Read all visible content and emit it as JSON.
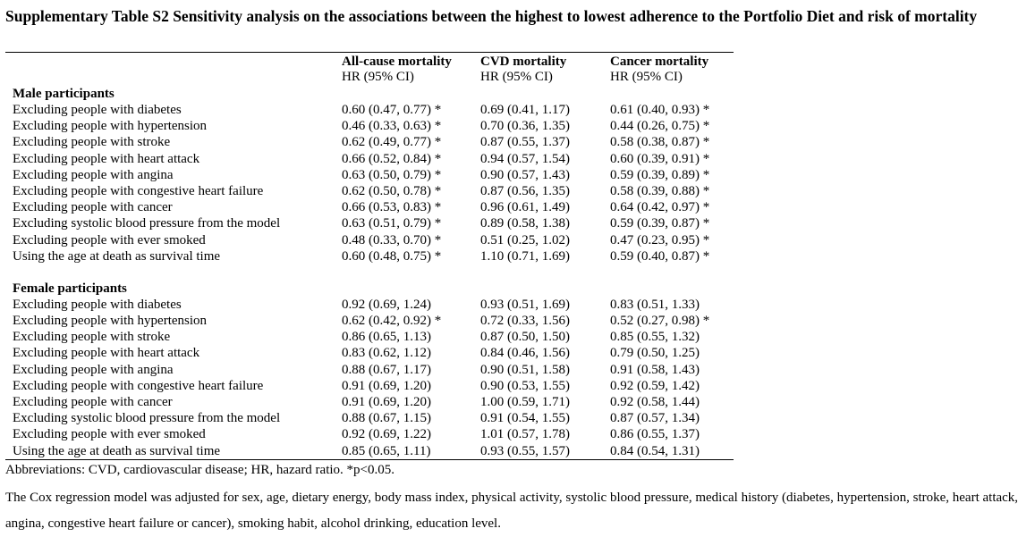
{
  "title": "Supplementary Table S2 Sensitivity analysis on the associations between the highest to lowest adherence to the Portfolio Diet and risk of mortality",
  "columns": [
    {
      "name": "All-cause mortality",
      "sub": "HR (95% CI)"
    },
    {
      "name": "CVD mortality",
      "sub": "HR (95% CI)"
    },
    {
      "name": "Cancer mortality",
      "sub": "HR (95% CI)"
    }
  ],
  "groups": [
    {
      "label": "Male participants",
      "rows": [
        {
          "label": "Excluding people with diabetes",
          "v1": "0.60 (0.47, 0.77) *",
          "v2": "0.69 (0.41, 1.17)",
          "v3": "0.61 (0.40, 0.93) *"
        },
        {
          "label": "Excluding people with hypertension",
          "v1": "0.46 (0.33, 0.63) *",
          "v2": "0.70 (0.36, 1.35)",
          "v3": "0.44 (0.26, 0.75) *"
        },
        {
          "label": "Excluding people with stroke",
          "v1": "0.62 (0.49, 0.77) *",
          "v2": "0.87 (0.55, 1.37)",
          "v3": "0.58 (0.38, 0.87) *"
        },
        {
          "label": "Excluding people with heart attack",
          "v1": "0.66 (0.52, 0.84) *",
          "v2": "0.94 (0.57, 1.54)",
          "v3": "0.60 (0.39, 0.91) *"
        },
        {
          "label": "Excluding people with angina",
          "v1": "0.63 (0.50, 0.79) *",
          "v2": "0.90 (0.57, 1.43)",
          "v3": "0.59 (0.39, 0.89) *"
        },
        {
          "label": "Excluding people with congestive heart failure",
          "v1": "0.62 (0.50, 0.78) *",
          "v2": "0.87 (0.56, 1.35)",
          "v3": "0.58 (0.39, 0.88) *"
        },
        {
          "label": "Excluding people with cancer",
          "v1": "0.66 (0.53, 0.83) *",
          "v2": "0.96 (0.61, 1.49)",
          "v3": "0.64 (0.42, 0.97) *"
        },
        {
          "label": "Excluding systolic blood pressure from the model",
          "v1": "0.63 (0.51, 0.79) *",
          "v2": "0.89 (0.58, 1.38)",
          "v3": "0.59 (0.39, 0.87) *"
        },
        {
          "label": "Excluding people with ever smoked",
          "v1": "0.48 (0.33, 0.70) *",
          "v2": "0.51 (0.25, 1.02)",
          "v3": "0.47 (0.23, 0.95) *"
        },
        {
          "label": "Using the age at death as survival time",
          "v1": "0.60 (0.48, 0.75) *",
          "v2": "1.10 (0.71, 1.69)",
          "v3": "0.59 (0.40, 0.87) *"
        }
      ]
    },
    {
      "label": "Female participants",
      "rows": [
        {
          "label": "Excluding people with diabetes",
          "v1": "0.92 (0.69, 1.24)",
          "v2": "0.93 (0.51, 1.69)",
          "v3": "0.83 (0.51, 1.33)"
        },
        {
          "label": "Excluding people with hypertension",
          "v1": "0.62 (0.42, 0.92) *",
          "v2": "0.72 (0.33, 1.56)",
          "v3": "0.52 (0.27, 0.98) *"
        },
        {
          "label": "Excluding people with stroke",
          "v1": "0.86 (0.65, 1.13)",
          "v2": "0.87 (0.50, 1.50)",
          "v3": "0.85 (0.55, 1.32)"
        },
        {
          "label": "Excluding people with heart attack",
          "v1": "0.83 (0.62, 1.12)",
          "v2": "0.84 (0.46, 1.56)",
          "v3": "0.79 (0.50, 1.25)"
        },
        {
          "label": "Excluding people with angina",
          "v1": "0.88 (0.67, 1.17)",
          "v2": "0.90 (0.51, 1.58)",
          "v3": "0.91 (0.58, 1.43)"
        },
        {
          "label": "Excluding people with congestive heart failure",
          "v1": "0.91 (0.69, 1.20)",
          "v2": "0.90 (0.53, 1.55)",
          "v3": "0.92 (0.59, 1.42)"
        },
        {
          "label": "Excluding people with cancer",
          "v1": "0.91 (0.69, 1.20)",
          "v2": "1.00 (0.59, 1.71)",
          "v3": "0.92 (0.58, 1.44)"
        },
        {
          "label": "Excluding systolic blood pressure from the model",
          "v1": "0.88 (0.67, 1.15)",
          "v2": "0.91 (0.54, 1.55)",
          "v3": "0.87 (0.57, 1.34)"
        },
        {
          "label": "Excluding people with ever smoked",
          "v1": "0.92 (0.69, 1.22)",
          "v2": "1.01 (0.57, 1.78)",
          "v3": "0.86 (0.55, 1.37)"
        },
        {
          "label": "Using the age at death as survival time",
          "v1": "0.85 (0.65, 1.11)",
          "v2": "0.93 (0.55, 1.57)",
          "v3": "0.84 (0.54, 1.31)"
        }
      ]
    }
  ],
  "abbreviations": "Abbreviations: CVD, cardiovascular disease; HR, hazard ratio. *p<0.05.",
  "note": "The Cox regression model was adjusted for sex, age, dietary energy, body mass index, physical activity, systolic blood pressure, medical history (diabetes, hypertension, stroke, heart attack, angina, congestive heart failure or cancer), smoking habit, alcohol drinking, education level."
}
